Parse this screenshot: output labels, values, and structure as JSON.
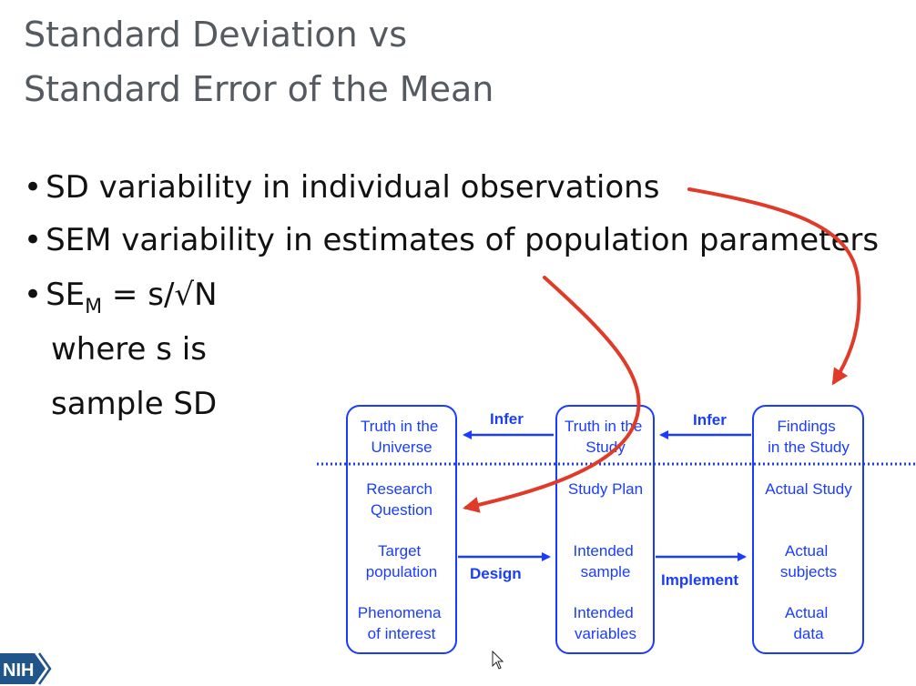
{
  "slide": {
    "title_line1": "Standard Deviation vs",
    "title_line2": "Standard Error of the Mean",
    "bullets": {
      "sd": "SD variability in individual observations",
      "sem": "SEM variability in estimates of population parameters",
      "sem_formula_prefix": "SE",
      "sem_formula_sub": "M",
      "sem_formula_rest": " = s/√N",
      "sem_where_1": "where s is",
      "sem_where_2": "sample SD"
    }
  },
  "diagram": {
    "columns": [
      {
        "header": [
          "Truth in the",
          "Universe"
        ],
        "rows": [
          [
            "Research",
            "Question"
          ],
          [
            "Target",
            "population"
          ],
          [
            "Phenomena",
            "of interest"
          ]
        ]
      },
      {
        "header": [
          "Truth in the",
          "Study"
        ],
        "rows": [
          [
            "Study Plan"
          ],
          [
            "Intended",
            "sample"
          ],
          [
            "Intended",
            "variables"
          ]
        ]
      },
      {
        "header": [
          "Findings",
          "in the Study"
        ],
        "rows": [
          [
            "Actual Study"
          ],
          [
            "Actual",
            "subjects"
          ],
          [
            "Actual",
            "data"
          ]
        ]
      }
    ],
    "arrow_labels": {
      "infer_left": "Infer",
      "infer_right": "Infer",
      "design": "Design",
      "implement": "Implement"
    },
    "colors": {
      "blue": "#1a3cff",
      "red": "#e03a28"
    }
  },
  "logo": {
    "text": "NIH"
  },
  "cursor": "arrow-cursor-icon"
}
